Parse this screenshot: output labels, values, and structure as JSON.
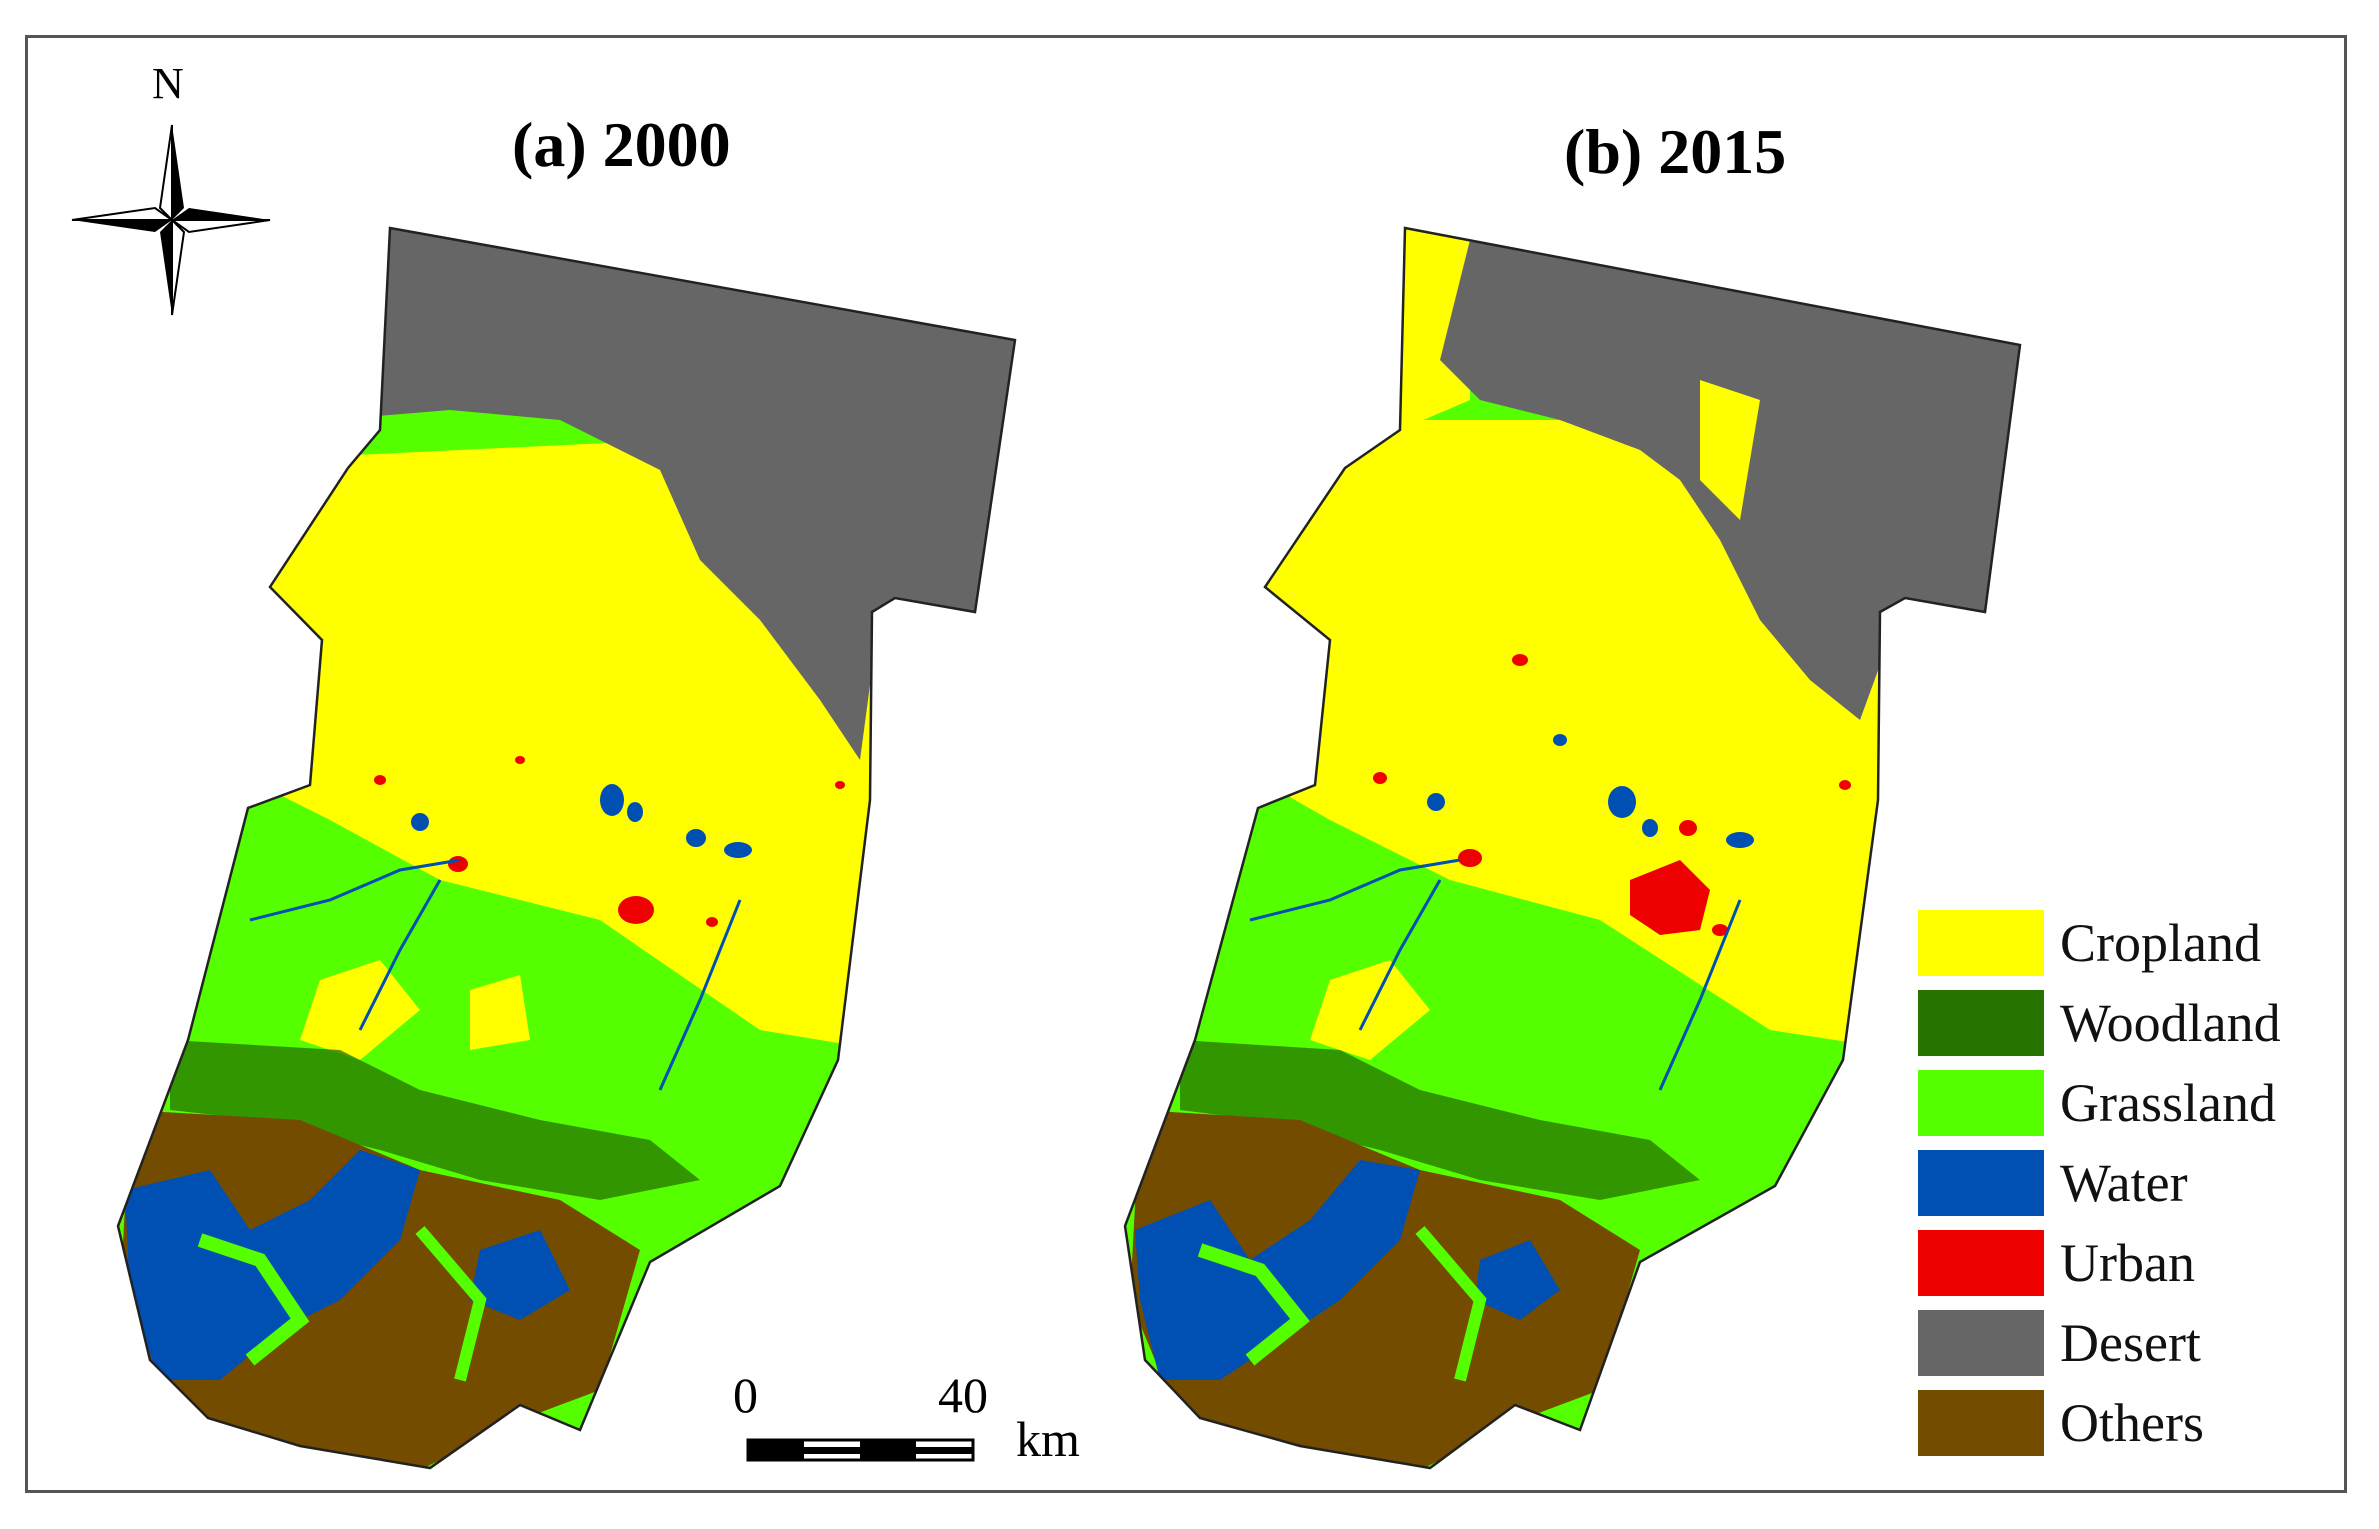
{
  "titles": {
    "a": "(a) 2000",
    "b": "(b) 2015"
  },
  "north_arrow": {
    "label": "N",
    "icon": "compass-rose-icon"
  },
  "legend": [
    {
      "label": "Cropland",
      "color": "#ffff00"
    },
    {
      "label": "Woodland",
      "color": "#267300"
    },
    {
      "label": "Grassland",
      "color": "#55ff00"
    },
    {
      "label": "Water",
      "color": "#0050b4"
    },
    {
      "label": "Urban",
      "color": "#ee0000"
    },
    {
      "label": "Desert",
      "color": "#666666"
    },
    {
      "label": "Others",
      "color": "#734c00"
    }
  ],
  "scale_bar": {
    "start": "0",
    "end": "40",
    "unit": "km"
  }
}
